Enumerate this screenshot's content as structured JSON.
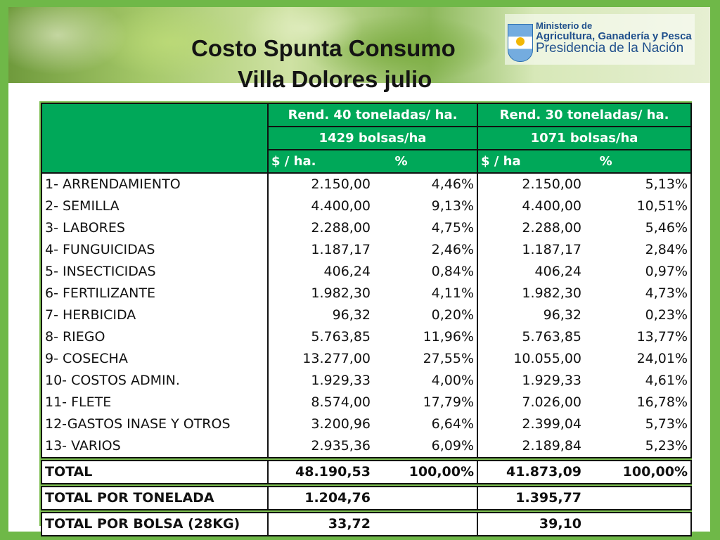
{
  "header": {
    "title_line1": "Costo Spunta Consumo",
    "title_line2": "Villa Dolores julio",
    "ministry_line1": "Ministerio de",
    "ministry_line2": "Agricultura, Ganadería y Pesca",
    "ministry_line3": "Presidencia de la Nación"
  },
  "table": {
    "col_a_title": "Rend. 40 toneladas/ ha.",
    "col_b_title": "Rend. 30 toneladas/ ha.",
    "col_a_bags": "1429 bolsas/ha",
    "col_b_bags": "1071 bolsas/ha",
    "col_a_unit": "$ / ha.",
    "col_b_unit": "$ / ha",
    "pct_label": "%",
    "rows": [
      {
        "label": "1- ARRENDAMIENTO",
        "a_val": "2.150,00",
        "a_pct": "4,46%",
        "b_val": "2.150,00",
        "b_pct": "5,13%"
      },
      {
        "label": "2- SEMILLA",
        "a_val": "4.400,00",
        "a_pct": "9,13%",
        "b_val": "4.400,00",
        "b_pct": "10,51%"
      },
      {
        "label": "3- LABORES",
        "a_val": "2.288,00",
        "a_pct": "4,75%",
        "b_val": "2.288,00",
        "b_pct": "5,46%"
      },
      {
        "label": "4- FUNGUICIDAS",
        "a_val": "1.187,17",
        "a_pct": "2,46%",
        "b_val": "1.187,17",
        "b_pct": "2,84%"
      },
      {
        "label": "5- INSECTICIDAS",
        "a_val": "406,24",
        "a_pct": "0,84%",
        "b_val": "406,24",
        "b_pct": "0,97%"
      },
      {
        "label": "6- FERTILIZANTE",
        "a_val": "1.982,30",
        "a_pct": "4,11%",
        "b_val": "1.982,30",
        "b_pct": "4,73%"
      },
      {
        "label": "7- HERBICIDA",
        "a_val": "96,32",
        "a_pct": "0,20%",
        "b_val": "96,32",
        "b_pct": "0,23%"
      },
      {
        "label": "8- RIEGO",
        "a_val": "5.763,85",
        "a_pct": "11,96%",
        "b_val": "5.763,85",
        "b_pct": "13,77%"
      },
      {
        "label": "9- COSECHA",
        "a_val": "13.277,00",
        "a_pct": "27,55%",
        "b_val": "10.055,00",
        "b_pct": "24,01%"
      },
      {
        "label": "10- COSTOS ADMIN.",
        "a_val": "1.929,33",
        "a_pct": "4,00%",
        "b_val": "1.929,33",
        "b_pct": "4,61%"
      },
      {
        "label": "11- FLETE",
        "a_val": "8.574,00",
        "a_pct": "17,79%",
        "b_val": "7.026,00",
        "b_pct": "16,78%"
      },
      {
        "label": "12-GASTOS INASE Y OTROS",
        "a_val": "3.200,96",
        "a_pct": "6,64%",
        "b_val": "2.399,04",
        "b_pct": "5,73%"
      },
      {
        "label": "13- VARIOS",
        "a_val": "2.935,36",
        "a_pct": "6,09%",
        "b_val": "2.189,84",
        "b_pct": "5,23%"
      }
    ],
    "total": {
      "label": "TOTAL",
      "a_val": "48.190,53",
      "a_pct": "100,00%",
      "b_val": "41.873,09",
      "b_pct": "100,00%"
    },
    "per_ton": {
      "label": "TOTAL POR TONELADA",
      "a_val": "1.204,76",
      "b_val": "1.395,77"
    },
    "per_bag": {
      "label": "TOTAL POR BOLSA (28KG)",
      "a_val": "33,72",
      "b_val": "39,10"
    }
  }
}
